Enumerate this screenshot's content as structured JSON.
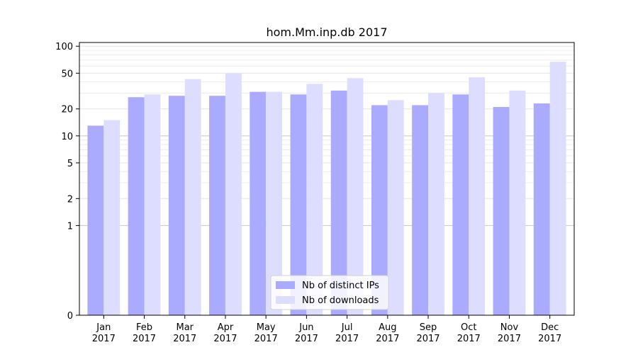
{
  "chart_data": {
    "type": "bar",
    "title": "hom.Mm.inp.db 2017",
    "xlabel": "",
    "ylabel": "",
    "yscale": "symlog",
    "ylim": [
      0,
      110
    ],
    "yticks": [
      0,
      1,
      2,
      5,
      10,
      20,
      50,
      100
    ],
    "ytick_labels": [
      "0",
      "1",
      "2",
      "5",
      "10",
      "20",
      "50",
      "100"
    ],
    "grid": "horizontal",
    "legend_position": "bottom-center",
    "categories": [
      {
        "month": "Jan",
        "year": "2017"
      },
      {
        "month": "Feb",
        "year": "2017"
      },
      {
        "month": "Mar",
        "year": "2017"
      },
      {
        "month": "Apr",
        "year": "2017"
      },
      {
        "month": "May",
        "year": "2017"
      },
      {
        "month": "Jun",
        "year": "2017"
      },
      {
        "month": "Jul",
        "year": "2017"
      },
      {
        "month": "Aug",
        "year": "2017"
      },
      {
        "month": "Sep",
        "year": "2017"
      },
      {
        "month": "Oct",
        "year": "2017"
      },
      {
        "month": "Nov",
        "year": "2017"
      },
      {
        "month": "Dec",
        "year": "2017"
      }
    ],
    "series": [
      {
        "name": "Nb of distinct IPs",
        "color": "#aaaaff",
        "values": [
          13,
          27,
          28,
          28,
          31,
          29,
          32,
          22,
          22,
          29,
          21,
          23
        ]
      },
      {
        "name": "Nb of downloads",
        "color": "#ddddff",
        "values": [
          15,
          29,
          43,
          50,
          31,
          38,
          44,
          25,
          30,
          45,
          32,
          67
        ]
      }
    ]
  }
}
